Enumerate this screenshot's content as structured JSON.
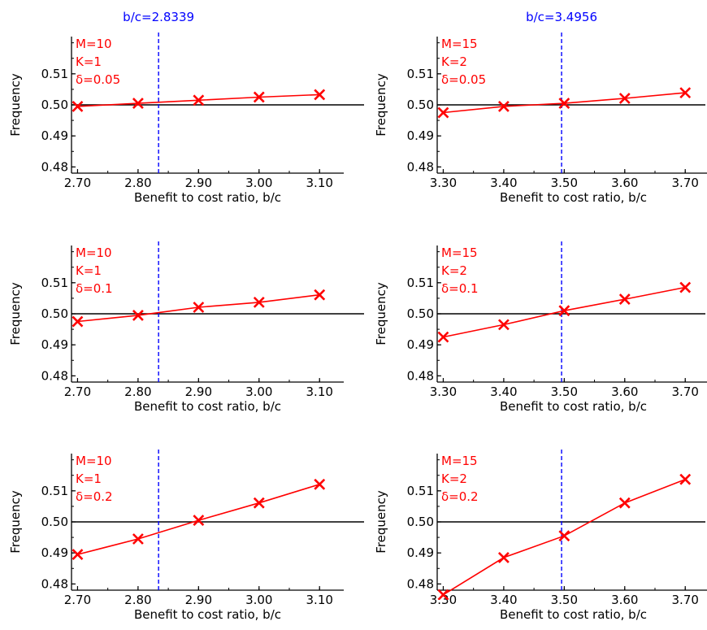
{
  "colors": {
    "series": "#ff0000",
    "threshold": "#0000ff",
    "axes": "#000000",
    "reference_line": "#000000"
  },
  "chart_data": [
    {
      "type": "line",
      "column": 0,
      "row": 0,
      "threshold_label": "b/c=2.8339",
      "threshold": 2.8339,
      "params": [
        "M=10",
        "K=1",
        "δ=0.05"
      ],
      "xlabel": "Benefit to cost ratio, b/c",
      "ylabel": "Frequency",
      "xlim": [
        2.69,
        3.14
      ],
      "ylim": [
        0.478,
        0.522
      ],
      "xticks": [
        2.7,
        2.8,
        2.9,
        3.0,
        3.1
      ],
      "xtick_labels": [
        "2.70",
        "2.80",
        "2.90",
        "3.00",
        "3.10"
      ],
      "yticks": [
        0.48,
        0.49,
        0.5,
        0.51
      ],
      "ytick_labels": [
        "0.48",
        "0.49",
        "0.50",
        "0.51"
      ],
      "reference_y": 0.5,
      "series": [
        {
          "x": [
            2.7,
            2.8,
            2.9,
            3.0,
            3.1
          ],
          "y": [
            0.4995,
            0.5005,
            0.5015,
            0.5025,
            0.5033
          ]
        }
      ]
    },
    {
      "type": "line",
      "column": 1,
      "row": 0,
      "threshold_label": "b/c=3.4956",
      "threshold": 3.4956,
      "params": [
        "M=15",
        "K=2",
        "δ=0.05"
      ],
      "xlabel": "Benefit to cost ratio, b/c",
      "ylabel": "Frequency",
      "xlim": [
        3.29,
        3.74
      ],
      "ylim": [
        0.478,
        0.522
      ],
      "xticks": [
        3.3,
        3.4,
        3.5,
        3.6,
        3.7
      ],
      "xtick_labels": [
        "3.30",
        "3.40",
        "3.50",
        "3.60",
        "3.70"
      ],
      "yticks": [
        0.48,
        0.49,
        0.5,
        0.51
      ],
      "ytick_labels": [
        "0.48",
        "0.49",
        "0.50",
        "0.51"
      ],
      "reference_y": 0.5,
      "series": [
        {
          "x": [
            3.3,
            3.4,
            3.5,
            3.6,
            3.7
          ],
          "y": [
            0.4975,
            0.4995,
            0.5005,
            0.5021,
            0.5039
          ]
        }
      ]
    },
    {
      "type": "line",
      "column": 0,
      "row": 1,
      "params": [
        "M=10",
        "K=1",
        "δ=0.1"
      ],
      "threshold": 2.8339,
      "xlabel": "Benefit to cost ratio, b/c",
      "ylabel": "Frequency",
      "xlim": [
        2.69,
        3.14
      ],
      "ylim": [
        0.478,
        0.522
      ],
      "xticks": [
        2.7,
        2.8,
        2.9,
        3.0,
        3.1
      ],
      "xtick_labels": [
        "2.70",
        "2.80",
        "2.90",
        "3.00",
        "3.10"
      ],
      "yticks": [
        0.48,
        0.49,
        0.5,
        0.51
      ],
      "ytick_labels": [
        "0.48",
        "0.49",
        "0.50",
        "0.51"
      ],
      "reference_y": 0.5,
      "series": [
        {
          "x": [
            2.7,
            2.8,
            2.9,
            3.0,
            3.1
          ],
          "y": [
            0.4975,
            0.4995,
            0.5021,
            0.5037,
            0.5061
          ]
        }
      ]
    },
    {
      "type": "line",
      "column": 1,
      "row": 1,
      "params": [
        "M=15",
        "K=2",
        "δ=0.1"
      ],
      "threshold": 3.4956,
      "xlabel": "Benefit to cost ratio, b/c",
      "ylabel": "Frequency",
      "xlim": [
        3.29,
        3.74
      ],
      "ylim": [
        0.478,
        0.522
      ],
      "xticks": [
        3.3,
        3.4,
        3.5,
        3.6,
        3.7
      ],
      "xtick_labels": [
        "3.30",
        "3.40",
        "3.50",
        "3.60",
        "3.70"
      ],
      "yticks": [
        0.48,
        0.49,
        0.5,
        0.51
      ],
      "ytick_labels": [
        "0.48",
        "0.49",
        "0.50",
        "0.51"
      ],
      "reference_y": 0.5,
      "series": [
        {
          "x": [
            3.3,
            3.4,
            3.5,
            3.6,
            3.7
          ],
          "y": [
            0.4925,
            0.4965,
            0.501,
            0.5047,
            0.5085
          ]
        }
      ]
    },
    {
      "type": "line",
      "column": 0,
      "row": 2,
      "params": [
        "M=10",
        "K=1",
        "δ=0.2"
      ],
      "threshold": 2.8339,
      "xlabel": "Benefit to cost ratio, b/c",
      "ylabel": "Frequency",
      "xlim": [
        2.69,
        3.14
      ],
      "ylim": [
        0.478,
        0.522
      ],
      "xticks": [
        2.7,
        2.8,
        2.9,
        3.0,
        3.1
      ],
      "xtick_labels": [
        "2.70",
        "2.80",
        "2.90",
        "3.00",
        "3.10"
      ],
      "yticks": [
        0.48,
        0.49,
        0.5,
        0.51
      ],
      "ytick_labels": [
        "0.48",
        "0.49",
        "0.50",
        "0.51"
      ],
      "reference_y": 0.5,
      "series": [
        {
          "x": [
            2.7,
            2.8,
            2.9,
            3.0,
            3.1
          ],
          "y": [
            0.4895,
            0.4945,
            0.5005,
            0.5061,
            0.5121
          ]
        }
      ]
    },
    {
      "type": "line",
      "column": 1,
      "row": 2,
      "params": [
        "M=15",
        "K=2",
        "δ=0.2"
      ],
      "threshold": 3.4956,
      "xlabel": "Benefit to cost ratio, b/c",
      "ylabel": "Frequency",
      "xlim": [
        3.29,
        3.74
      ],
      "ylim": [
        0.478,
        0.522
      ],
      "xticks": [
        3.3,
        3.4,
        3.5,
        3.6,
        3.7
      ],
      "xtick_labels": [
        "3.30",
        "3.40",
        "3.50",
        "3.60",
        "3.70"
      ],
      "yticks": [
        0.48,
        0.49,
        0.5,
        0.51
      ],
      "ytick_labels": [
        "0.48",
        "0.49",
        "0.50",
        "0.51"
      ],
      "reference_y": 0.5,
      "series": [
        {
          "x": [
            3.3,
            3.4,
            3.5,
            3.6,
            3.7
          ],
          "y": [
            0.4765,
            0.4885,
            0.4955,
            0.5061,
            0.5137
          ]
        }
      ]
    }
  ]
}
